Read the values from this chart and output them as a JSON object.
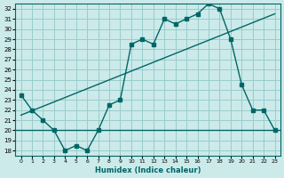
{
  "xlabel": "Humidex (Indice chaleur)",
  "bg_color": "#cceaea",
  "grid_color": "#99cccc",
  "line_color": "#006666",
  "xlim": [
    -0.5,
    23.5
  ],
  "ylim": [
    17.5,
    32.5
  ],
  "yticks": [
    18,
    19,
    20,
    21,
    22,
    23,
    24,
    25,
    26,
    27,
    28,
    29,
    30,
    31,
    32
  ],
  "xticks": [
    0,
    1,
    2,
    3,
    4,
    5,
    6,
    7,
    8,
    9,
    10,
    11,
    12,
    13,
    14,
    15,
    16,
    17,
    18,
    19,
    20,
    21,
    22,
    23
  ],
  "main_x": [
    0,
    1,
    2,
    3,
    4,
    5,
    6,
    7,
    8,
    9,
    10,
    11,
    12,
    13,
    14,
    15,
    16,
    17,
    18,
    19,
    20,
    21,
    22,
    23
  ],
  "main_y": [
    23.5,
    22.0,
    21.0,
    20.0,
    18.0,
    18.5,
    18.0,
    20.0,
    22.5,
    23.0,
    28.5,
    29.0,
    28.5,
    31.0,
    30.5,
    31.0,
    31.5,
    32.5,
    32.0,
    29.0,
    24.5,
    22.0,
    22.0,
    20.0
  ],
  "flat_y": 20.0,
  "trend_x": [
    0,
    23
  ],
  "trend_y": [
    21.5,
    31.5
  ]
}
